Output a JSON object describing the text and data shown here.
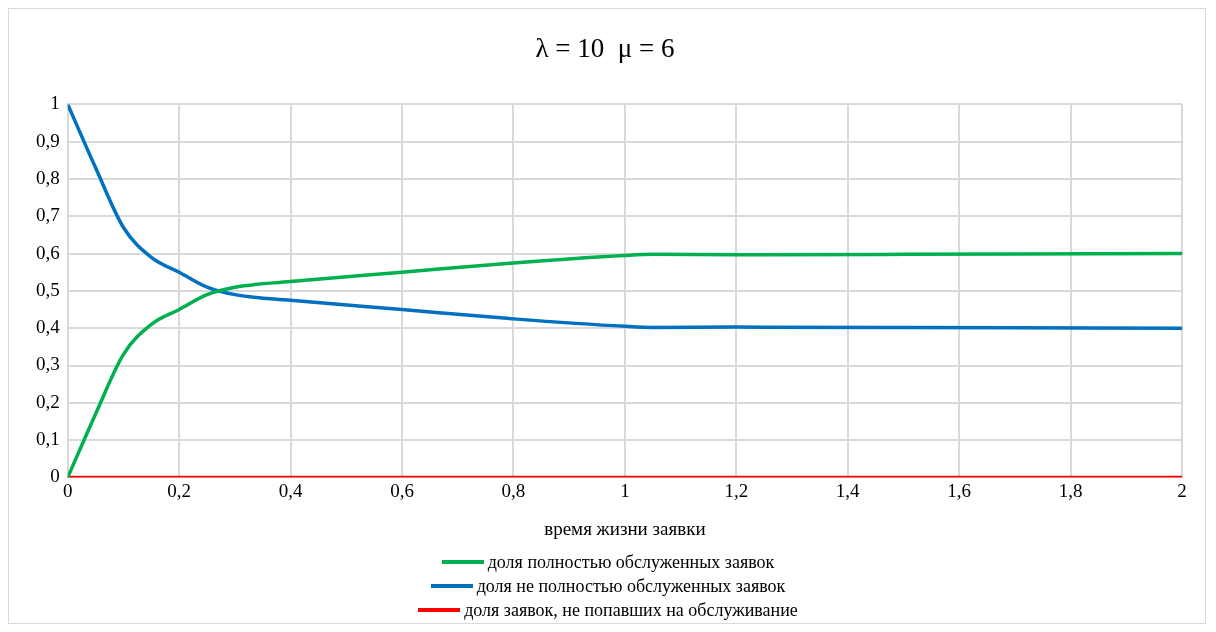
{
  "chart_data": {
    "type": "line",
    "title": "λ = 10  μ = 6",
    "xlabel": "время жизни заявки",
    "x": [
      0,
      0.05,
      0.1,
      0.15,
      0.2,
      0.25,
      0.3,
      0.4,
      0.6,
      0.8,
      1.0,
      1.05,
      1.2,
      1.5,
      2
    ],
    "series": [
      {
        "name": "доля полностью обслуженных заявок",
        "color": "#00b050",
        "values": [
          0,
          0.17,
          0.33,
          0.41,
          0.45,
          0.49,
          0.51,
          0.525,
          0.55,
          0.575,
          0.595,
          0.598,
          0.597,
          0.598,
          0.6
        ]
      },
      {
        "name": "доля не полностью обслуженных заявок",
        "color": "#0070c0",
        "values": [
          1,
          0.83,
          0.67,
          0.59,
          0.55,
          0.51,
          0.49,
          0.475,
          0.45,
          0.425,
          0.405,
          0.402,
          0.403,
          0.402,
          0.4
        ]
      },
      {
        "name": "доля заявок, не попавших на обслуживание",
        "color": "#ff0000",
        "values": [
          0,
          0,
          0,
          0,
          0,
          0,
          0,
          0,
          0,
          0,
          0,
          0,
          0,
          0,
          0
        ]
      }
    ],
    "xlim": [
      0,
      2
    ],
    "xticks": [
      0,
      {
        "value": 0.2,
        "label": "0,2"
      },
      {
        "value": 0.4,
        "label": "0,4"
      },
      {
        "value": 0.6,
        "label": "0,6"
      },
      {
        "value": 0.8,
        "label": "0,8"
      },
      1,
      {
        "value": 1.2,
        "label": "1,2"
      },
      {
        "value": 1.4,
        "label": "1,4"
      },
      {
        "value": 1.6,
        "label": "1,6"
      },
      {
        "value": 1.8,
        "label": "1,8"
      },
      2
    ],
    "ylim": [
      0,
      1
    ],
    "yticks": [
      0,
      {
        "value": 0.1,
        "label": "0,1"
      },
      {
        "value": 0.2,
        "label": "0,2"
      },
      {
        "value": 0.3,
        "label": "0,3"
      },
      {
        "value": 0.4,
        "label": "0,4"
      },
      {
        "value": 0.5,
        "label": "0,5"
      },
      {
        "value": 0.6,
        "label": "0,6"
      },
      {
        "value": 0.7,
        "label": "0,7"
      },
      {
        "value": 0.8,
        "label": "0,8"
      },
      {
        "value": 0.9,
        "label": "0,9"
      },
      1
    ],
    "grid": true,
    "legend": "bottom",
    "marker": "none",
    "line_style": "solid"
  }
}
